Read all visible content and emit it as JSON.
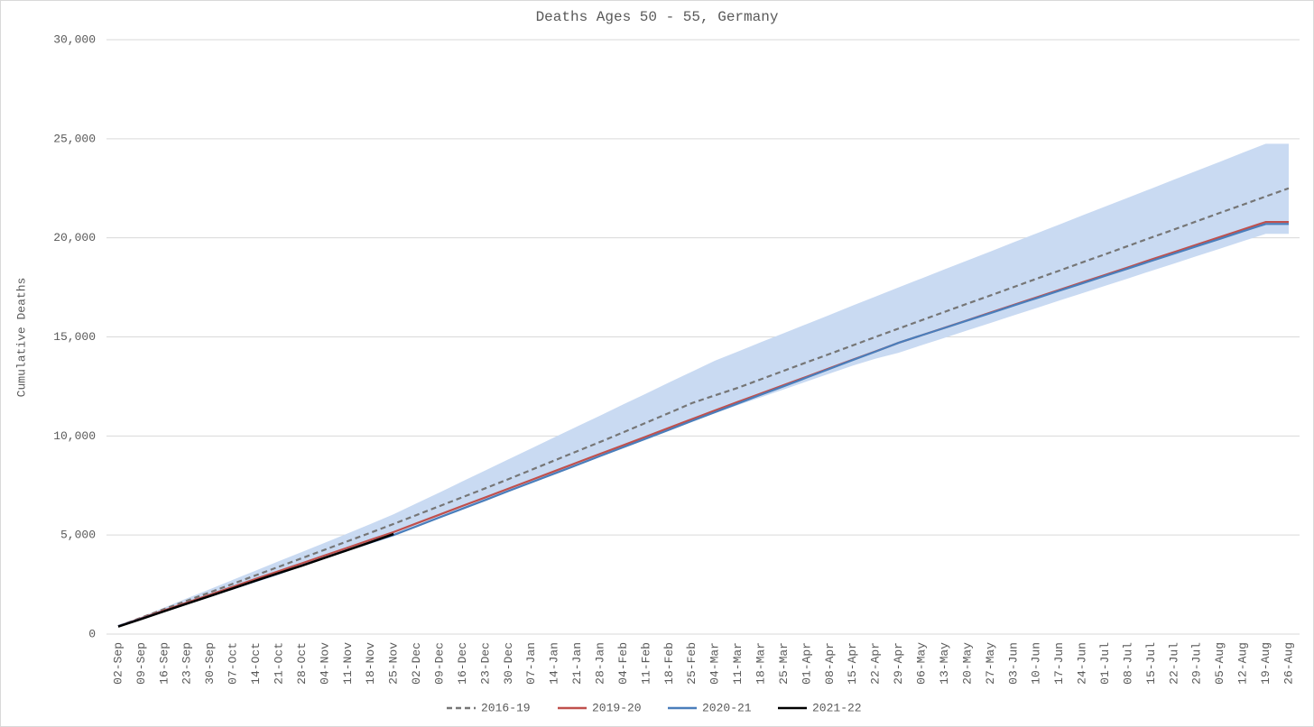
{
  "chart_data": {
    "type": "line",
    "title": "Deaths Ages 50 - 55, Germany",
    "y_label": "Cumulative Deaths",
    "categories": [
      "02-Sep",
      "09-Sep",
      "16-Sep",
      "23-Sep",
      "30-Sep",
      "07-Oct",
      "14-Oct",
      "21-Oct",
      "28-Oct",
      "04-Nov",
      "11-Nov",
      "18-Nov",
      "25-Nov",
      "02-Dec",
      "09-Dec",
      "16-Dec",
      "23-Dec",
      "30-Dec",
      "07-Jan",
      "14-Jan",
      "21-Jan",
      "28-Jan",
      "04-Feb",
      "11-Feb",
      "18-Feb",
      "25-Feb",
      "04-Mar",
      "11-Mar",
      "18-Mar",
      "25-Mar",
      "01-Apr",
      "08-Apr",
      "15-Apr",
      "22-Apr",
      "29-Apr",
      "06-May",
      "13-May",
      "20-May",
      "27-May",
      "03-Jun",
      "10-Jun",
      "17-Jun",
      "24-Jun",
      "01-Jul",
      "08-Jul",
      "15-Jul",
      "22-Jul",
      "29-Jul",
      "05-Aug",
      "12-Aug",
      "19-Aug",
      "26-Aug"
    ],
    "band": {
      "color": "#c9daf2",
      "upper": [
        400,
        870,
        1340,
        1810,
        2270,
        2740,
        3210,
        3680,
        4140,
        4610,
        5080,
        5560,
        6050,
        6600,
        7150,
        7710,
        8260,
        8820,
        9370,
        9930,
        10480,
        11030,
        11590,
        12140,
        12700,
        13250,
        13800,
        14260,
        14730,
        15190,
        15650,
        16110,
        16580,
        17040,
        17500,
        17950,
        18410,
        18860,
        19310,
        19770,
        20220,
        20670,
        21130,
        21580,
        22030,
        22480,
        22940,
        23390,
        23840,
        24300,
        24750,
        24750
      ],
      "lower": [
        380,
        760,
        1150,
        1540,
        1920,
        2300,
        2680,
        3060,
        3450,
        3850,
        4240,
        4620,
        5000,
        5390,
        5840,
        6280,
        6720,
        7170,
        7610,
        8050,
        8490,
        8940,
        9380,
        9820,
        10260,
        10710,
        11150,
        11560,
        11950,
        12350,
        12750,
        13150,
        13550,
        13900,
        14200,
        14580,
        14950,
        15330,
        15700,
        16080,
        16450,
        16830,
        17200,
        17580,
        17950,
        18330,
        18700,
        19080,
        19450,
        19830,
        20200,
        20200
      ]
    },
    "series": [
      {
        "name": "2016-19",
        "color": "#767676",
        "dash": true,
        "values": [
          400,
          830,
          1260,
          1690,
          2110,
          2540,
          2970,
          3400,
          3830,
          4260,
          4690,
          5120,
          5560,
          6010,
          6460,
          6910,
          7360,
          7820,
          8290,
          8760,
          9230,
          9700,
          10180,
          10670,
          11160,
          11660,
          12050,
          12430,
          12860,
          13290,
          13720,
          14140,
          14570,
          15000,
          15420,
          15840,
          16260,
          16680,
          17090,
          17510,
          17930,
          18340,
          18760,
          19170,
          19590,
          20010,
          20420,
          20840,
          21260,
          21670,
          22090,
          22500
        ]
      },
      {
        "name": "2019-20",
        "color": "#c0504d",
        "values": [
          400,
          800,
          1200,
          1590,
          1990,
          2390,
          2790,
          3180,
          3570,
          3970,
          4360,
          4760,
          5150,
          5590,
          6030,
          6470,
          6900,
          7340,
          7780,
          8220,
          8660,
          9100,
          9530,
          9970,
          10410,
          10850,
          11290,
          11720,
          12140,
          12570,
          12990,
          13420,
          13850,
          14270,
          14700,
          15080,
          15460,
          15840,
          16230,
          16610,
          16990,
          17370,
          17750,
          18130,
          18510,
          18900,
          19280,
          19660,
          20040,
          20420,
          20800,
          20800
        ]
      },
      {
        "name": "2020-21",
        "color": "#4a7ebb",
        "values": [
          400,
          780,
          1160,
          1540,
          1920,
          2300,
          2680,
          3060,
          3460,
          3850,
          4240,
          4620,
          5000,
          5440,
          5890,
          6330,
          6770,
          7220,
          7660,
          8100,
          8540,
          8990,
          9430,
          9870,
          10310,
          10760,
          11200,
          11640,
          12080,
          12510,
          12950,
          13390,
          13830,
          14260,
          14700,
          15080,
          15450,
          15830,
          16200,
          16580,
          16950,
          17330,
          17700,
          18080,
          18450,
          18830,
          19200,
          19580,
          19950,
          20330,
          20700,
          20700
        ]
      },
      {
        "name": "2021-22",
        "color": "#000000",
        "values": [
          380,
          760,
          1150,
          1540,
          1920,
          2310,
          2700,
          3080,
          3450,
          3850,
          4240,
          4640,
          5050,
          null,
          null,
          null,
          null,
          null,
          null,
          null,
          null,
          null,
          null,
          null,
          null,
          null,
          null,
          null,
          null,
          null,
          null,
          null,
          null,
          null,
          null,
          null,
          null,
          null,
          null,
          null,
          null,
          null,
          null,
          null,
          null,
          null,
          null,
          null,
          null,
          null,
          null,
          null
        ]
      }
    ],
    "ylim": [
      0,
      30000
    ],
    "yticks": [
      0,
      {
        "value": 5000,
        "label": "5,000"
      },
      {
        "value": 10000,
        "label": "10,000"
      },
      {
        "value": 15000,
        "label": "15,000"
      },
      {
        "value": 20000,
        "label": "20,000"
      },
      {
        "value": 25000,
        "label": "25,000"
      },
      {
        "value": 30000,
        "label": "30,000"
      }
    ],
    "grid": true,
    "legend": "bottom"
  }
}
